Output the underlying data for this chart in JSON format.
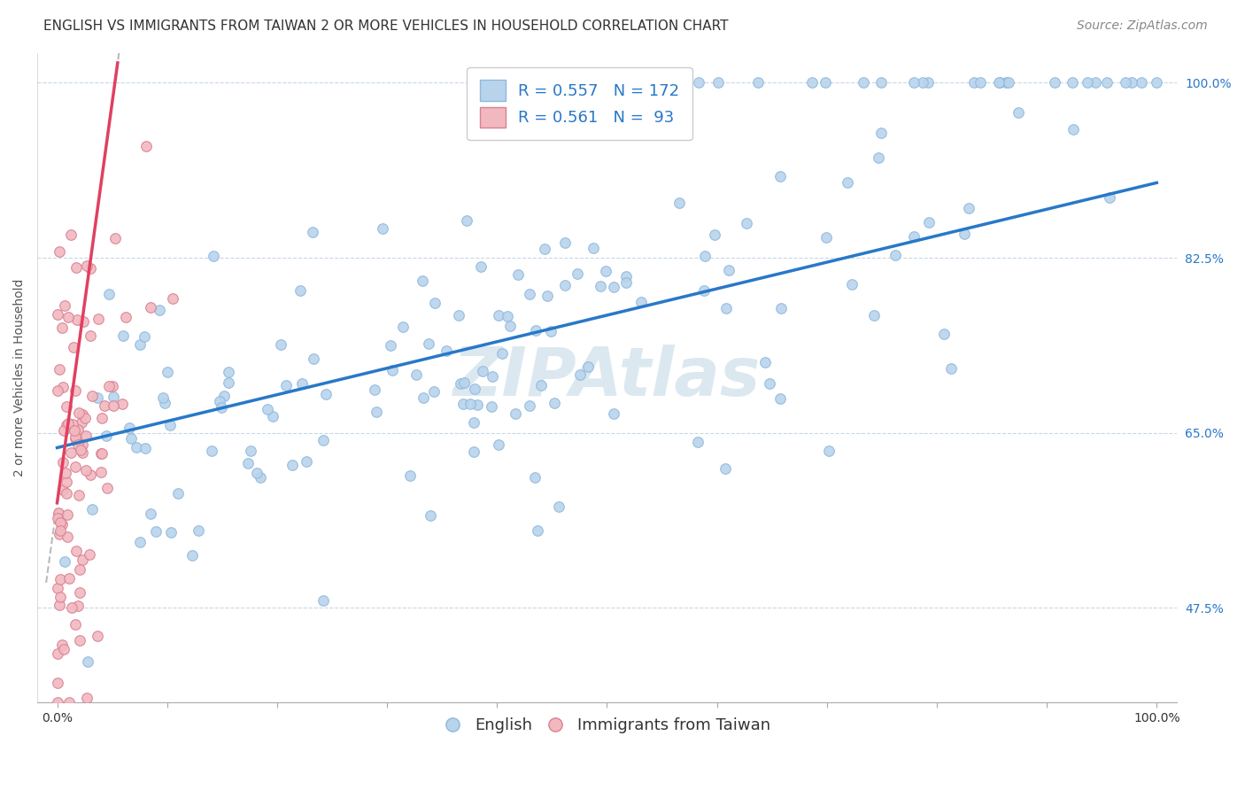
{
  "title": "ENGLISH VS IMMIGRANTS FROM TAIWAN 2 OR MORE VEHICLES IN HOUSEHOLD CORRELATION CHART",
  "source": "Source: ZipAtlas.com",
  "ylabel": "2 or more Vehicles in Household",
  "english_R": "0.557",
  "english_N": "172",
  "taiwan_R": "0.561",
  "taiwan_N": "93",
  "legend_labels": [
    "English",
    "Immigrants from Taiwan"
  ],
  "english_color": "#b8d4ed",
  "taiwan_color": "#f2b8c0",
  "english_line_color": "#2878c8",
  "taiwan_line_color": "#e04060",
  "english_dot_edge": "#90b8dc",
  "taiwan_dot_edge": "#d88090",
  "watermark_color": "#dce8f0",
  "background_color": "#ffffff",
  "grid_color": "#c8d8e8",
  "seed": 12,
  "english_N_int": 172,
  "taiwan_N_int": 93,
  "x_min": 0.0,
  "x_max": 1.0,
  "y_min": 0.38,
  "y_max": 1.03,
  "title_fontsize": 11,
  "axis_label_fontsize": 10,
  "tick_fontsize": 10,
  "legend_fontsize": 13,
  "source_fontsize": 10
}
